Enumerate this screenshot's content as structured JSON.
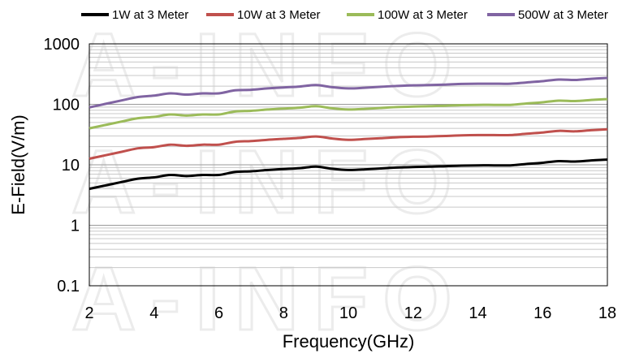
{
  "watermark": "A-INFO",
  "chart_data": {
    "type": "line",
    "title": "",
    "xlabel": "Frequency(GHz)",
    "ylabel": "E-Field(V/m)",
    "xlim": [
      2,
      18
    ],
    "ylim": [
      0.1,
      1000
    ],
    "yscale": "log",
    "grid": true,
    "legend_position": "top",
    "x_ticks": [
      "2",
      "4",
      "6",
      "8",
      "10",
      "12",
      "14",
      "16",
      "18"
    ],
    "y_ticks": [
      "0.1",
      "1",
      "10",
      "100",
      "1000"
    ],
    "x": [
      2,
      3,
      3.5,
      4,
      4.5,
      5,
      5.5,
      6,
      6.5,
      7,
      7.5,
      8,
      8.5,
      9,
      9.5,
      10,
      10.5,
      11,
      11.5,
      12,
      12.5,
      13,
      13.5,
      14,
      14.5,
      15,
      15.5,
      16,
      16.5,
      17,
      17.5,
      18
    ],
    "series": [
      {
        "name": "1W at 3 Meter",
        "color": "#000000",
        "values": [
          4.0,
          5.2,
          5.9,
          6.2,
          6.8,
          6.5,
          6.8,
          6.8,
          7.6,
          7.8,
          8.2,
          8.5,
          8.8,
          9.3,
          8.6,
          8.2,
          8.4,
          8.7,
          9.0,
          9.2,
          9.3,
          9.5,
          9.7,
          9.8,
          9.8,
          9.8,
          10.3,
          10.8,
          11.5,
          11.3,
          11.8,
          12.2
        ]
      },
      {
        "name": "10W at 3 Meter",
        "color": "#c0504d",
        "values": [
          12.6,
          16.4,
          18.7,
          19.6,
          21.5,
          20.6,
          21.5,
          21.5,
          24.0,
          24.7,
          25.9,
          26.9,
          27.8,
          29.4,
          27.2,
          25.9,
          26.6,
          27.5,
          28.5,
          29.1,
          29.4,
          30.0,
          30.7,
          31.0,
          31.0,
          31.0,
          32.6,
          34.2,
          36.4,
          35.7,
          37.3,
          38.6
        ]
      },
      {
        "name": "100W at 3 Meter",
        "color": "#9bbb59",
        "values": [
          40,
          52,
          59,
          62,
          68,
          65,
          68,
          68,
          76,
          78,
          82,
          85,
          88,
          93,
          86,
          82,
          84,
          87,
          90,
          92,
          93,
          95,
          97,
          98,
          98,
          98,
          103,
          108,
          115,
          113,
          118,
          122
        ]
      },
      {
        "name": "500W at 3 Meter",
        "color": "#8064a2",
        "values": [
          89,
          116,
          132,
          139,
          152,
          145,
          152,
          152,
          170,
          174,
          183,
          190,
          197,
          208,
          192,
          183,
          188,
          195,
          201,
          206,
          208,
          212,
          217,
          219,
          219,
          219,
          230,
          241,
          257,
          253,
          264,
          273
        ]
      }
    ]
  }
}
